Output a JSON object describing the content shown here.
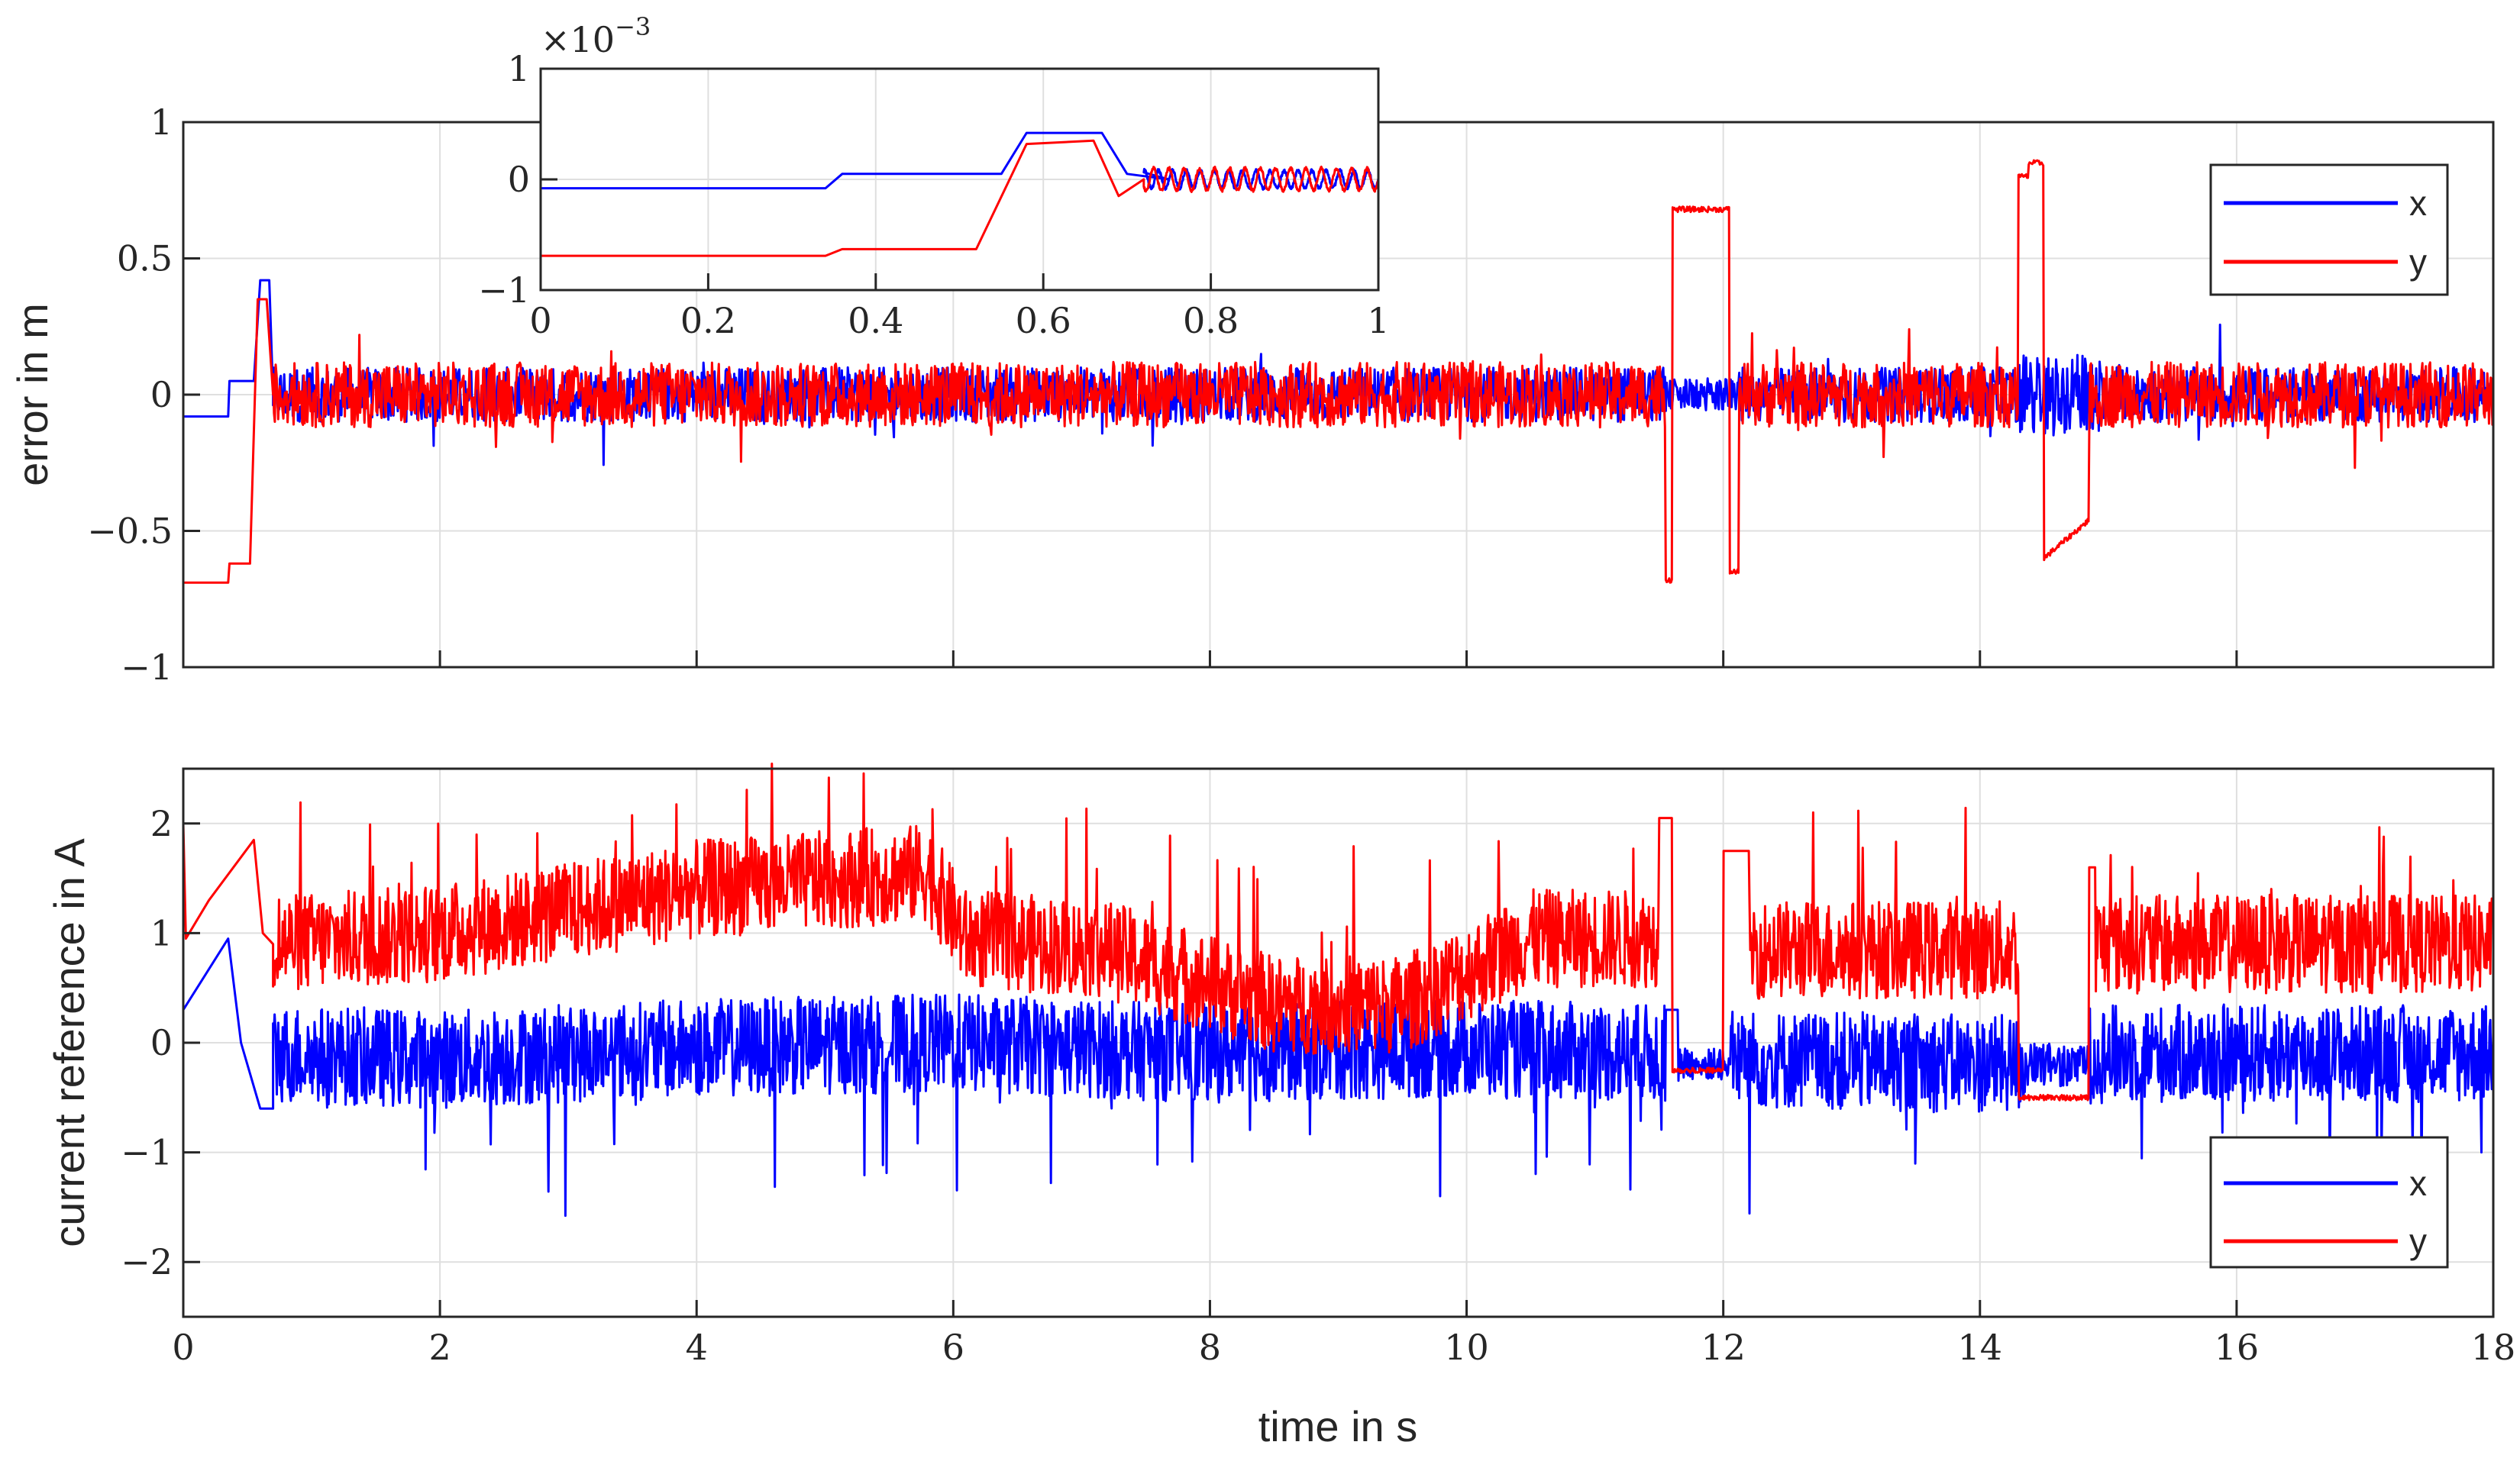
{
  "colors": {
    "x": "#0000ff",
    "y": "#ff0000",
    "grid": "#dfdfdf",
    "axis": "#262626"
  },
  "chart_data": [
    {
      "type": "line",
      "id": "top",
      "ylabel": "error in m",
      "xlabel": "",
      "xlim": [
        0,
        18
      ],
      "ylim": [
        -1,
        1
      ],
      "yticks": [
        -1,
        -0.5,
        0,
        0.5,
        1
      ],
      "ytick_labels": [
        "−1",
        "−0.5",
        "0",
        "0.5",
        "1"
      ],
      "xticks": [
        0,
        2,
        4,
        6,
        8,
        10,
        12,
        14,
        16,
        18
      ],
      "grid": true,
      "legend": {
        "position": "top-right",
        "entries": [
          "x",
          "y"
        ]
      },
      "series": [
        {
          "name": "x",
          "color": "#0000ff",
          "points": [
            [
              0,
              -0.08
            ],
            [
              0.35,
              -0.08
            ],
            [
              0.36,
              0.05
            ],
            [
              0.55,
              0.05
            ],
            [
              0.6,
              0.42
            ],
            [
              0.67,
              0.42
            ],
            [
              0.7,
              0.0
            ]
          ],
          "noise": {
            "from": 0.7,
            "to": 18,
            "band": 0.1,
            "mean": 0.0
          },
          "segments": [
            [
              11.55,
              11.65,
              -0.02,
              0.1
            ],
            [
              12.05,
              12.12,
              -0.02,
              0.1
            ],
            [
              14.35,
              14.45,
              -0.05,
              0.2
            ],
            [
              14.85,
              14.92,
              -0.05,
              0.2
            ]
          ]
        },
        {
          "name": "y",
          "color": "#ff0000",
          "points": [
            [
              0,
              -0.69
            ],
            [
              0.35,
              -0.69
            ],
            [
              0.36,
              -0.62
            ],
            [
              0.52,
              -0.62
            ],
            [
              0.58,
              0.35
            ],
            [
              0.65,
              0.35
            ],
            [
              0.7,
              0.0
            ]
          ],
          "steps": [
            [
              11.55,
              11.6,
              -0.69
            ],
            [
              11.6,
              11.72,
              0.7
            ],
            [
              11.72,
              12.05,
              0.7
            ],
            [
              12.05,
              12.12,
              -0.65
            ],
            [
              14.3,
              14.38,
              0.8
            ],
            [
              14.5,
              14.58,
              -0.66
            ],
            [
              14.58,
              14.85,
              -0.55
            ]
          ],
          "noise": {
            "from": 0.7,
            "to": 18,
            "band": 0.12,
            "mean": 0.0
          }
        }
      ]
    },
    {
      "type": "line",
      "id": "bottom",
      "ylabel": "current reference in A",
      "xlabel": "time in s",
      "xlim": [
        0,
        18
      ],
      "ylim": [
        -2.5,
        2.5
      ],
      "yticks": [
        -2,
        -1,
        0,
        1,
        2
      ],
      "ytick_labels": [
        "−2",
        "−1",
        "0",
        "1",
        "2"
      ],
      "xticks": [
        0,
        2,
        4,
        6,
        8,
        10,
        12,
        14,
        16,
        18
      ],
      "xtick_labels": [
        "0",
        "2",
        "4",
        "6",
        "8",
        "10",
        "12",
        "14",
        "16",
        "18"
      ],
      "grid": true,
      "legend": {
        "position": "bottom-right",
        "entries": [
          "x",
          "y"
        ]
      },
      "series": [
        {
          "name": "x",
          "color": "#0000ff",
          "envelope": [
            [
              0.7,
              -0.1
            ],
            [
              2,
              -0.15
            ],
            [
              4,
              -0.05
            ],
            [
              6,
              0.0
            ],
            [
              8,
              -0.1
            ],
            [
              10,
              -0.05
            ],
            [
              11.5,
              -0.1
            ],
            [
              12.2,
              -0.15
            ],
            [
              14.3,
              -0.2
            ],
            [
              14.9,
              -0.1
            ],
            [
              18,
              -0.1
            ]
          ],
          "band": 0.45
        },
        {
          "name": "y",
          "color": "#ff0000",
          "envelope": [
            [
              0.7,
              0.9
            ],
            [
              2,
              1.0
            ],
            [
              4,
              1.4
            ],
            [
              5.8,
              1.55
            ],
            [
              6.1,
              0.95
            ],
            [
              7.2,
              0.85
            ],
            [
              8.5,
              0.35
            ],
            [
              9.5,
              0.35
            ],
            [
              10.5,
              0.95
            ],
            [
              11.5,
              0.95
            ],
            [
              12.2,
              0.85
            ],
            [
              14.3,
              0.85
            ],
            [
              14.9,
              0.9
            ],
            [
              18,
              0.9
            ]
          ],
          "band": 0.45
        }
      ]
    },
    {
      "type": "line",
      "id": "inset",
      "title": "×10",
      "exponent": "−3",
      "xlim": [
        0,
        1
      ],
      "ylim": [
        -1,
        1
      ],
      "yticks": [
        -1,
        0,
        1
      ],
      "ytick_labels": [
        "−1",
        "0",
        "1"
      ],
      "xticks": [
        0,
        0.2,
        0.4,
        0.6,
        0.8,
        1
      ],
      "xtick_labels": [
        "0",
        "0.2",
        "0.4",
        "0.6",
        "0.8",
        "1"
      ],
      "grid": true,
      "series": [
        {
          "name": "x",
          "color": "#0000ff",
          "points": [
            [
              0,
              -0.08
            ],
            [
              0.34,
              -0.08
            ],
            [
              0.36,
              0.05
            ],
            [
              0.55,
              0.05
            ],
            [
              0.58,
              0.42
            ],
            [
              0.67,
              0.42
            ],
            [
              0.7,
              0.05
            ],
            [
              0.75,
              0.0
            ]
          ],
          "osc": {
            "from": 0.72,
            "to": 1.0,
            "amp": 0.08,
            "freq": 60
          }
        },
        {
          "name": "y",
          "color": "#ff0000",
          "points": [
            [
              0,
              -0.69
            ],
            [
              0.34,
              -0.69
            ],
            [
              0.36,
              -0.63
            ],
            [
              0.52,
              -0.63
            ],
            [
              0.58,
              0.32
            ],
            [
              0.66,
              0.35
            ],
            [
              0.69,
              -0.15
            ],
            [
              0.72,
              0.0
            ]
          ],
          "osc": {
            "from": 0.72,
            "to": 1.0,
            "amp": 0.1,
            "freq": 55
          }
        }
      ]
    }
  ],
  "legend_labels": {
    "x": "x",
    "y": "y"
  }
}
